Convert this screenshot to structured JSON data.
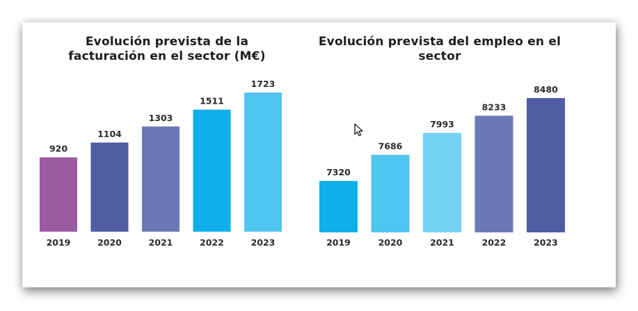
{
  "chart_data": [
    {
      "type": "bar",
      "title": "Evolución prevista de la facturación en el sector (M€)",
      "title_lines": [
        "Evolución prevista de la",
        "facturación en el sector (M€)"
      ],
      "categories": [
        "2019",
        "2020",
        "2021",
        "2022",
        "2023"
      ],
      "values": [
        920,
        1104,
        1303,
        1511,
        1723
      ],
      "data_labels": [
        "920",
        "1104",
        "1303",
        "1511",
        "1723"
      ],
      "bar_colors": [
        "#9b5ba0",
        "#505ca4",
        "#6c78b6",
        "#10aeea",
        "#50c5f0"
      ],
      "xlabel": "",
      "ylabel": "",
      "ylim": [
        0,
        1723
      ],
      "grid": false,
      "legend": "none"
    },
    {
      "type": "bar",
      "title": "Evolución prevista del empleo en el sector",
      "title_lines": [
        "Evolución prevista del empleo en el",
        "sector"
      ],
      "categories": [
        "2019",
        "2020",
        "2021",
        "2022",
        "2023"
      ],
      "values": [
        7320,
        7686,
        7993,
        8233,
        8480
      ],
      "data_labels": [
        "7320",
        "7686",
        "7993",
        "8233",
        "8480"
      ],
      "bar_colors": [
        "#10aeea",
        "#50c5f0",
        "#76d2f3",
        "#6c78b6",
        "#505ca4"
      ],
      "xlabel": "",
      "ylabel": "",
      "ylim": [
        6600,
        8480
      ],
      "grid": false,
      "legend": "none"
    }
  ],
  "cursor": {
    "icon": "mouse-pointer-icon"
  }
}
